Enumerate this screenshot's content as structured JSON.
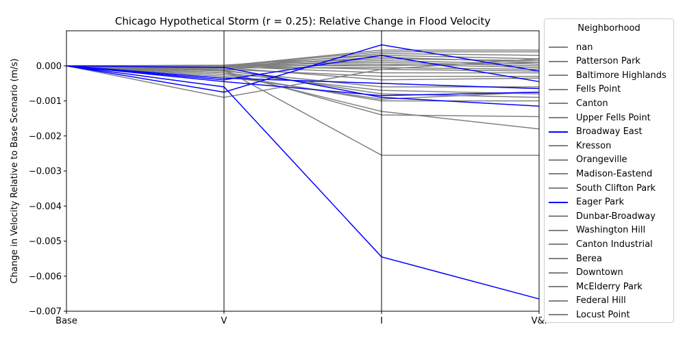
{
  "chart_data": {
    "type": "line",
    "title": "Chicago Hypothetical Storm (r = 0.25): Relative Change in Flood Velocity",
    "xlabel": "",
    "ylabel": "Change in Velocity Relative to Base Scenario (m/s)",
    "categories": [
      "Base",
      "V",
      "I",
      "V&I"
    ],
    "ylim": [
      -0.007,
      0.001
    ],
    "yticks": [
      -0.007,
      -0.006,
      -0.005,
      -0.004,
      -0.003,
      -0.002,
      -0.001,
      0.0
    ],
    "ytick_labels": [
      "−0.007",
      "−0.006",
      "−0.005",
      "−0.004",
      "−0.003",
      "−0.002",
      "−0.001",
      "0.000"
    ],
    "grid": false,
    "legend": {
      "title": "Neighborhood",
      "placement": "right-outside",
      "entries": [
        {
          "name": "nan",
          "color": "#808080"
        },
        {
          "name": "Patterson Park",
          "color": "#808080"
        },
        {
          "name": "Baltimore Highlands",
          "color": "#808080"
        },
        {
          "name": "Fells Point",
          "color": "#808080"
        },
        {
          "name": "Canton",
          "color": "#808080"
        },
        {
          "name": "Upper Fells Point",
          "color": "#808080"
        },
        {
          "name": "Broadway East",
          "color": "#0000ff"
        },
        {
          "name": "Kresson",
          "color": "#808080"
        },
        {
          "name": "Orangeville",
          "color": "#808080"
        },
        {
          "name": "Madison-Eastend",
          "color": "#808080"
        },
        {
          "name": "South Clifton Park",
          "color": "#808080"
        },
        {
          "name": "Eager Park",
          "color": "#0000ff"
        },
        {
          "name": "Dunbar-Broadway",
          "color": "#808080"
        },
        {
          "name": "Washington Hill",
          "color": "#808080"
        },
        {
          "name": "Canton Industrial",
          "color": "#808080"
        },
        {
          "name": "Berea",
          "color": "#808080"
        },
        {
          "name": "Downtown",
          "color": "#808080"
        },
        {
          "name": "McElderry Park",
          "color": "#808080"
        },
        {
          "name": "Federal Hill",
          "color": "#808080"
        },
        {
          "name": "Locust Point",
          "color": "#808080"
        }
      ]
    },
    "series": [
      {
        "color": "#808080",
        "values": [
          0,
          0.0,
          0.00045,
          0.00045
        ]
      },
      {
        "color": "#808080",
        "values": [
          0,
          0.0,
          0.0004,
          0.0004
        ]
      },
      {
        "color": "#808080",
        "values": [
          0,
          -5e-05,
          0.00035,
          0.0003
        ]
      },
      {
        "color": "#808080",
        "values": [
          0,
          2e-05,
          0.0003,
          0.0002
        ]
      },
      {
        "color": "#808080",
        "values": [
          0,
          -3e-05,
          0.00025,
          0.0001
        ]
      },
      {
        "color": "#808080",
        "values": [
          0,
          1e-05,
          0.0002,
          0.00015
        ]
      },
      {
        "color": "#808080",
        "values": [
          0,
          -2e-05,
          0.00015,
          5e-05
        ]
      },
      {
        "color": "#808080",
        "values": [
          0,
          0.0,
          0.0001,
          0.0
        ]
      },
      {
        "color": "#808080",
        "values": [
          0,
          -4e-05,
          5e-05,
          -5e-05
        ]
      },
      {
        "color": "#808080",
        "values": [
          0,
          1e-05,
          0.0,
          0.0001
        ]
      },
      {
        "color": "#808080",
        "values": [
          0,
          -6e-05,
          -5e-05,
          -0.0001
        ]
      },
      {
        "color": "#808080",
        "values": [
          0,
          0.0,
          -0.0001,
          -0.00015
        ]
      },
      {
        "color": "#808080",
        "values": [
          0,
          -2e-05,
          -0.0002,
          -0.0002
        ]
      },
      {
        "color": "#808080",
        "values": [
          0,
          -0.0001,
          -0.0003,
          -0.0003
        ]
      },
      {
        "color": "#808080",
        "values": [
          0,
          -5e-05,
          -0.0004,
          -0.00035
        ]
      },
      {
        "color": "#808080",
        "values": [
          0,
          -0.00015,
          -0.0006,
          -0.0006
        ]
      },
      {
        "color": "#808080",
        "values": [
          0,
          -0.0002,
          -0.0007,
          -0.0008
        ]
      },
      {
        "color": "#808080",
        "values": [
          0,
          -0.00012,
          -0.0008,
          -0.0009
        ]
      },
      {
        "color": "#808080",
        "values": [
          0,
          -0.00025,
          -0.001,
          -0.001
        ]
      },
      {
        "color": "#808080",
        "values": [
          0,
          -0.0003,
          -0.00095,
          -0.00075
        ]
      },
      {
        "color": "#808080",
        "values": [
          0,
          -0.0009,
          -0.0001,
          0.0002
        ]
      },
      {
        "color": "#808080",
        "values": [
          0,
          -0.0002,
          -0.0013,
          -0.0018
        ]
      },
      {
        "color": "#808080",
        "values": [
          0,
          -0.00015,
          -0.0014,
          -0.00145
        ]
      },
      {
        "color": "#808080",
        "values": [
          0,
          -0.0001,
          -0.00255,
          -0.00255
        ]
      },
      {
        "color": "#0000ff",
        "values": [
          0,
          -0.0006,
          -0.00545,
          -0.00665
        ]
      },
      {
        "color": "#0000ff",
        "values": [
          0,
          -0.00075,
          0.0006,
          -0.00015
        ]
      },
      {
        "color": "#0000ff",
        "values": [
          0,
          -0.0004,
          0.0003,
          -0.00045
        ]
      },
      {
        "color": "#0000ff",
        "values": [
          0,
          -0.00035,
          -0.0005,
          -0.00065
        ]
      },
      {
        "color": "#0000ff",
        "values": [
          0,
          -5e-05,
          -0.0009,
          -0.00115
        ]
      },
      {
        "color": "#0000ff",
        "values": [
          0,
          -0.00045,
          -0.00085,
          -0.00075
        ]
      }
    ]
  }
}
